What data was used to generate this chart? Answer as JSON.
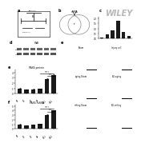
{
  "panel_d_wb_label1": "PAX6",
  "panel_d_wb_label2": "Actin",
  "panel_d_title": "WB",
  "panel_e_title": "PAX6 protein",
  "panel_f_title": "PAX6 mRNA",
  "bar_categories": [
    "d0",
    "d2",
    "d5",
    "d8",
    "d11",
    "d14"
  ],
  "bar_values_e": [
    1.0,
    0.75,
    0.85,
    0.9,
    2.8,
    3.5
  ],
  "bar_values_f": [
    1.0,
    0.8,
    0.9,
    1.1,
    3.0,
    4.0
  ],
  "bar_color": "#1a1a1a",
  "error_bars_e": [
    0.05,
    0.05,
    0.08,
    0.07,
    0.15,
    0.12
  ],
  "error_bars_f": [
    0.05,
    0.06,
    0.07,
    0.08,
    0.18,
    0.15
  ],
  "wiley_text": "WILEY",
  "background": "#ffffff",
  "img_placeholder_color": "#ddd0c0",
  "c_bar_values": [
    0.15,
    0.4,
    0.85,
    1.8,
    0.65,
    0.25
  ],
  "img_labels": [
    [
      "Sham",
      "Injury cell"
    ],
    [
      "aging-Sham",
      "SCl-aging"
    ],
    [
      "mifing-Sham",
      "SCl-mifing"
    ]
  ]
}
